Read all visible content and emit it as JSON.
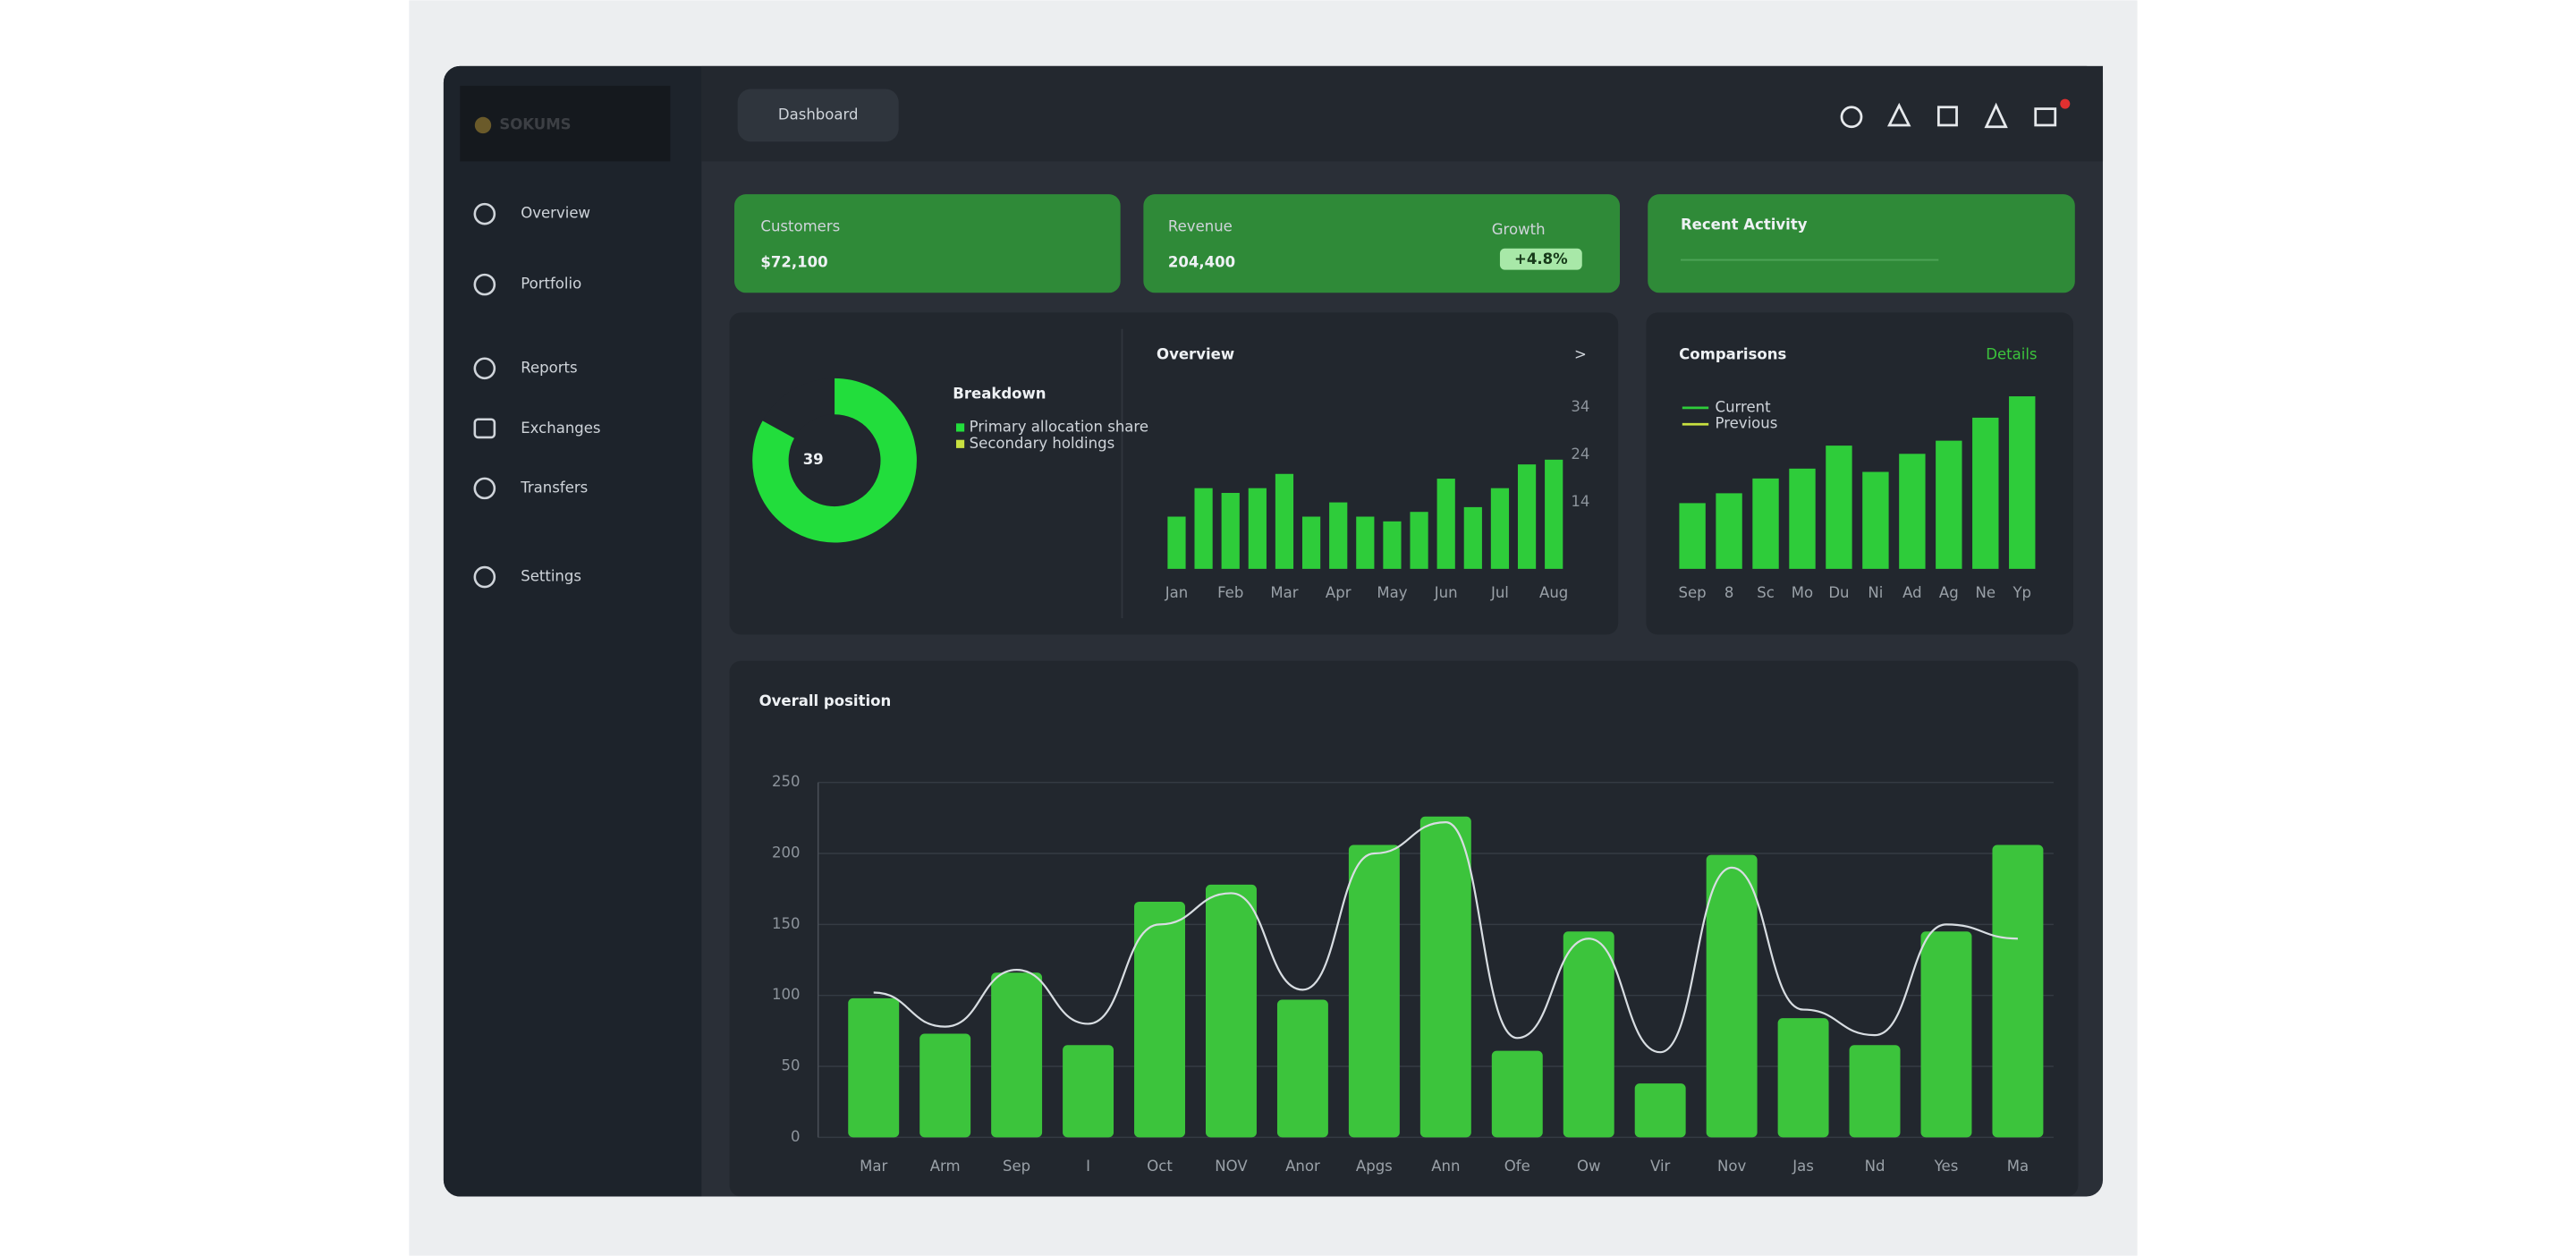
{
  "sidebar": {
    "logo": "SOKUMS",
    "items": [
      "Overview",
      "Portfolio",
      "Reports",
      "Exchanges",
      "Transfers",
      "Settings"
    ]
  },
  "header": {
    "title": "Dashboard"
  },
  "cards": [
    {
      "label": "Customers",
      "value": "$72,100"
    },
    {
      "label": "Revenue",
      "value": "204,400",
      "side_label": "Growth",
      "side_value": "+4.8%"
    },
    {
      "label": "Recent Activity"
    }
  ],
  "chart_data": [
    {
      "type": "donut",
      "title": "Breakdown",
      "center_value": 39,
      "percent": 83,
      "color": "#22dd3c",
      "legend": [
        {
          "name": "Primary allocation share",
          "color": "#22dd3c"
        },
        {
          "name": "Secondary holdings",
          "color": "#c8e040"
        }
      ]
    },
    {
      "type": "bar",
      "title": "Overview",
      "marker": ">",
      "color": "#2ecc3a",
      "categories": [
        "Jan",
        null,
        "Feb",
        null,
        "Mar",
        null,
        "Apr",
        null,
        "May",
        null,
        "Jun",
        null,
        "Jul",
        null,
        "Aug"
      ],
      "values": [
        11,
        17,
        16,
        17,
        20,
        11,
        14,
        11,
        10,
        12,
        19,
        13,
        17,
        22,
        23
      ],
      "ylim": [
        0,
        36
      ],
      "yticks": [
        14,
        24,
        34
      ]
    },
    {
      "type": "bar",
      "title": "Comparisons",
      "link": "Details",
      "color": "#2ecc3a",
      "legend": [
        {
          "name": "Current",
          "color": "#2ecc3a"
        },
        {
          "name": "Previous",
          "color": "#c8e040"
        }
      ],
      "categories": [
        "Sep",
        "8",
        "Sc",
        "Mo",
        "Du",
        "Ni",
        "Ad",
        "Ag",
        "Ne",
        "Yp"
      ],
      "values": [
        40,
        46,
        55,
        61,
        75,
        59,
        70,
        78,
        92,
        105
      ],
      "ylim": [
        0,
        110
      ]
    },
    {
      "type": "bar",
      "title": "Overall position",
      "color": "#3cc43c",
      "line_color": "#d8dde2",
      "categories": [
        "Mar",
        "Arm",
        "Sep",
        "I",
        "Oct",
        "NOV",
        "Anor",
        "Apgs",
        "Ann",
        "Ofe",
        "Ow",
        "Vir",
        "Nov",
        "Jas",
        "Nd",
        "Yes",
        "Ma"
      ],
      "values": [
        98,
        73,
        116,
        65,
        166,
        178,
        97,
        206,
        226,
        61,
        145,
        38,
        199,
        84,
        65,
        145,
        206
      ],
      "line_values": [
        102,
        78,
        118,
        80,
        150,
        172,
        104,
        200,
        222,
        70,
        140,
        60,
        190,
        90,
        72,
        150,
        140
      ],
      "ylim": [
        0,
        250
      ],
      "yticks": [
        0,
        50,
        100,
        150,
        200,
        250
      ],
      "grid": true
    }
  ]
}
